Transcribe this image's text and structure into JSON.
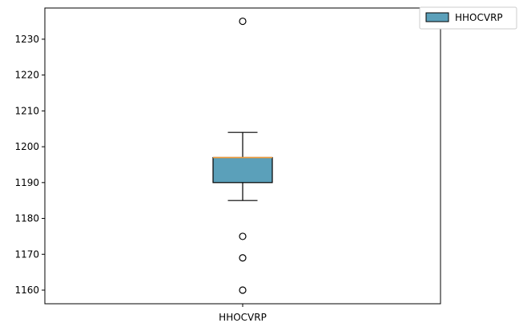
{
  "chart_data": {
    "type": "boxplot",
    "title": "",
    "xlabel": "",
    "ylabel": "",
    "categories": [
      "HHOCVRP"
    ],
    "series": [
      {
        "name": "HHOCVRP",
        "whisker_low": 1185,
        "q1": 1190,
        "median": 1197,
        "q3": 1197,
        "whisker_high": 1204,
        "outliers": [
          1235,
          1175,
          1169,
          1160
        ],
        "fill_color": "#5ba0ba",
        "median_color": "#f39c3c"
      }
    ],
    "yticks": [
      1160,
      1170,
      1180,
      1190,
      1200,
      1210,
      1220,
      1230
    ],
    "ylim": [
      1156.2,
      1238.7
    ],
    "grid": false,
    "legend": {
      "position": "top-right, outside",
      "entries": [
        "HHOCVRP"
      ]
    }
  }
}
